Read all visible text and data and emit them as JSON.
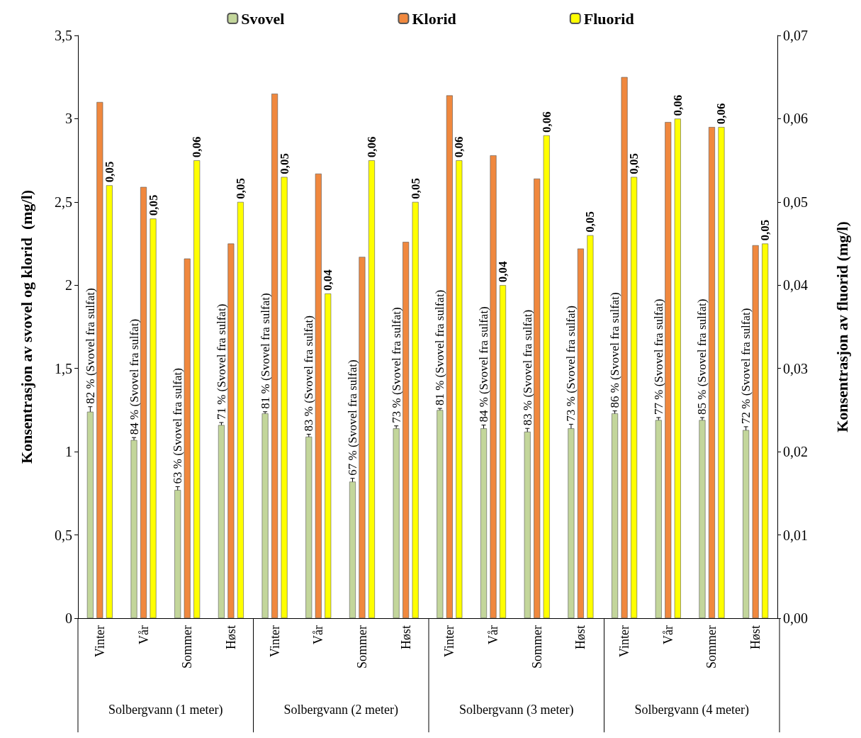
{
  "chart_data": {
    "type": "bar",
    "categories": [
      "Vinter",
      "Vår",
      "Sommer",
      "Høst",
      "Vinter",
      "Vår",
      "Sommer",
      "Høst",
      "Vinter",
      "Vår",
      "Sommer",
      "Høst",
      "Vinter",
      "Vår",
      "Sommer",
      "Høst"
    ],
    "annotations": [
      "Solbergvann (1 meter)",
      "Solbergvann (2 meter)",
      "Solbergvann (3 meter)",
      "Solbergvann (4 meter)",
      "82 % (Svovel fra sulfat)",
      "84 % (Svovel fra sulfat)",
      "63 % (Svovel fra sulfat)",
      "71 % (Svovel fra sulfat)",
      "81 % (Svovel fra sulfat)",
      "83 % (Svovel fra sulfat)",
      "67 % (Svovel fra sulfat)",
      "73 % (Svovel fra sulfat)",
      "81 % (Svovel fra sulfat)",
      "84 % (Svovel fra sulfat)",
      "83 % (Svovel fra sulfat)",
      "73 % (Svovel fra sulfat)",
      "86 % (Svovel fra sulfat)",
      "77 % (Svovel fra sulfat)",
      "85 % (Svovel fra sulfat)",
      "72 % (Svovel fra sulfat)"
    ],
    "ylabel": "Konsentrasjon av svovel og klorid  (mg/l)",
    "y2label": "Konsentrasjon av fluorid (mg/l)",
    "ylim": [
      0,
      3.5
    ],
    "yticks": [
      0,
      {
        "value": 0.5,
        "label": "0,5"
      },
      1,
      {
        "value": 1.5,
        "label": "1,5"
      },
      2,
      {
        "value": 2.5,
        "label": "2,5"
      },
      3,
      {
        "value": 3.5,
        "label": "3,5"
      }
    ],
    "y2lim": [
      0,
      0.07
    ],
    "y2ticks": [
      {
        "value": 0,
        "label": "0,00"
      },
      {
        "value": 0.01,
        "label": "0,01"
      },
      {
        "value": 0.02,
        "label": "0,02"
      },
      {
        "value": 0.03,
        "label": "0,03"
      },
      {
        "value": 0.04,
        "label": "0,04"
      },
      {
        "value": 0.05,
        "label": "0,05"
      },
      {
        "value": 0.06,
        "label": "0,06"
      },
      {
        "value": 0.07,
        "label": "0,07"
      }
    ],
    "legend": "top",
    "series": [
      {
        "name": "Svovel",
        "color": "#c3d69b",
        "values": [
          1.24,
          1.07,
          0.77,
          1.16,
          1.23,
          1.09,
          0.82,
          1.14,
          1.25,
          1.14,
          1.12,
          1.14,
          1.23,
          1.19,
          1.19,
          1.13
        ],
        "errors": [
          0.03,
          0.015,
          0.02,
          0.015,
          0.01,
          0.015,
          0.02,
          0.015,
          0.01,
          0.02,
          0.02,
          0.025,
          0.015,
          0.015,
          0.015,
          0.02
        ]
      },
      {
        "name": "Klorid",
        "color": "#f0883e",
        "values": [
          3.1,
          2.59,
          2.16,
          2.25,
          3.15,
          2.67,
          2.17,
          2.26,
          3.14,
          2.78,
          2.64,
          2.22,
          3.25,
          2.98,
          2.95,
          2.24
        ]
      },
      {
        "name": "Fluorid",
        "color": "#ffff00",
        "axis": "y2",
        "values": [
          0.052,
          0.048,
          0.055,
          0.05,
          0.053,
          0.039,
          0.055,
          0.05,
          0.055,
          0.04,
          0.058,
          0.046,
          0.053,
          0.06,
          0.059,
          0.045
        ],
        "value_labels": [
          "0,05",
          "0,05",
          "0,06",
          "0,05",
          "0,05",
          "0,04",
          "0,06",
          "0,05",
          "0,06",
          "0,04",
          "0,06",
          "0,05",
          "0,05",
          "0,06",
          "0,06",
          "0,05"
        ]
      }
    ]
  }
}
